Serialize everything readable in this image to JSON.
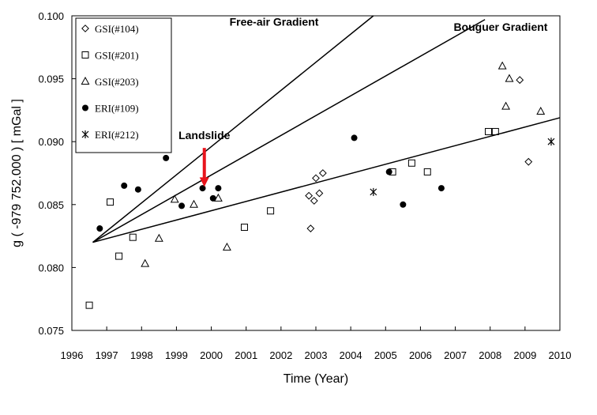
{
  "chart_data": {
    "type": "scatter",
    "title": "",
    "xlabel": "Time (Year)",
    "ylabel": "g ( -979 752.000 ) [ mGal ]",
    "xlim": [
      1996,
      2010
    ],
    "ylim": [
      0.075,
      0.1
    ],
    "xticks": [
      "1996",
      "1997",
      "1998",
      "1999",
      "2000",
      "2001",
      "2002",
      "2003",
      "2004",
      "2005",
      "2006",
      "2007",
      "2008",
      "2009",
      "2010"
    ],
    "yticks": [
      "0.075",
      "0.080",
      "0.085",
      "0.090",
      "0.095",
      "0.100"
    ],
    "grid": false,
    "legend_position": "top-left",
    "series": [
      {
        "name": "GSI(#104)",
        "marker": "diamond",
        "points": [
          [
            2002.8,
            0.0857
          ],
          [
            2002.85,
            0.0831
          ],
          [
            2002.95,
            0.0853
          ],
          [
            2003.0,
            0.0871
          ],
          [
            2003.1,
            0.0859
          ],
          [
            2003.2,
            0.0875
          ],
          [
            2008.85,
            0.0949
          ],
          [
            2009.1,
            0.0884
          ]
        ]
      },
      {
        "name": "GSI(#201)",
        "marker": "square",
        "points": [
          [
            1996.5,
            0.077
          ],
          [
            1997.1,
            0.0852
          ],
          [
            1997.35,
            0.0809
          ],
          [
            1997.75,
            0.0824
          ],
          [
            2000.95,
            0.0832
          ],
          [
            2001.7,
            0.0845
          ],
          [
            2005.2,
            0.0876
          ],
          [
            2005.75,
            0.0883
          ],
          [
            2006.2,
            0.0876
          ],
          [
            2007.95,
            0.0908
          ],
          [
            2008.15,
            0.0908
          ]
        ]
      },
      {
        "name": "GSI(#203)",
        "marker": "triangle",
        "points": [
          [
            1998.1,
            0.0803
          ],
          [
            1998.5,
            0.0823
          ],
          [
            1998.95,
            0.0854
          ],
          [
            1999.5,
            0.085
          ],
          [
            2000.2,
            0.0855
          ],
          [
            2000.45,
            0.0816
          ],
          [
            2008.35,
            0.096
          ],
          [
            2008.45,
            0.0928
          ],
          [
            2008.55,
            0.095
          ],
          [
            2009.45,
            0.0924
          ]
        ]
      },
      {
        "name": "ERI(#109)",
        "marker": "filled-circle",
        "points": [
          [
            1996.8,
            0.0831
          ],
          [
            1997.5,
            0.0865
          ],
          [
            1997.9,
            0.0862
          ],
          [
            1998.7,
            0.0887
          ],
          [
            1999.15,
            0.0849
          ],
          [
            1999.75,
            0.0863
          ],
          [
            2000.05,
            0.0855
          ],
          [
            2000.2,
            0.0863
          ],
          [
            2004.1,
            0.0903
          ],
          [
            2005.1,
            0.0876
          ],
          [
            2005.5,
            0.085
          ],
          [
            2006.6,
            0.0863
          ]
        ]
      },
      {
        "name": "ERI(#212)",
        "marker": "asterisk",
        "points": [
          [
            2004.65,
            0.086
          ],
          [
            2009.75,
            0.09
          ]
        ]
      }
    ],
    "lines": [
      {
        "from": [
          1996.6,
          0.082
        ],
        "to": [
          2010.0,
          0.0919
        ]
      },
      {
        "from": [
          1996.6,
          0.082
        ],
        "to": [
          2007.85,
          0.0997
        ]
      },
      {
        "from": [
          1996.6,
          0.082
        ],
        "to": [
          2004.65,
          0.1
        ]
      }
    ],
    "annotations": [
      {
        "text": "Free-air Gradient",
        "x": 2001.8,
        "y": 0.0992
      },
      {
        "text": "Bouguer Gradient",
        "x": 2008.3,
        "y": 0.0988
      },
      {
        "text": "Landslide",
        "x": 1999.8,
        "y": 0.0902
      }
    ],
    "arrow": {
      "x": 1999.8,
      "y_from": 0.0895,
      "y_to": 0.0866,
      "color": "#e8141c"
    }
  }
}
